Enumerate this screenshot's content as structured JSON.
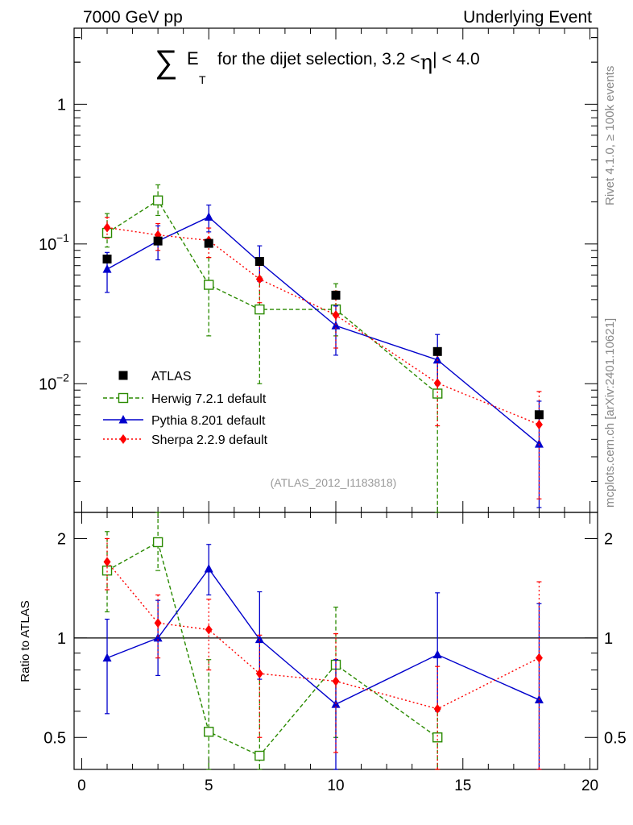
{
  "header": {
    "left": "7000 GeV pp",
    "right": "Underlying Event"
  },
  "title": {
    "sigma": "∑",
    "et_letter": "E",
    "et_sub": "T",
    "text": "for the dijet selection, 3.2 <",
    "eta": "η",
    "text_tail": "| < 4.0"
  },
  "side_labels": {
    "rivet": "Rivet 4.1.0, ≥ 100k events",
    "mcplots": "mcplots.cern.ch [arXiv:2401.10621]"
  },
  "analysis_id": "(ATLAS_2012_I1183818)",
  "colors": {
    "atlas": "#000000",
    "herwig": "#2a8a00",
    "pythia": "#0000cc",
    "sherpa": "#ff0000"
  },
  "chart_data": {
    "type": "line",
    "x_range": [
      -0.3,
      20.3
    ],
    "x_ticks": [
      0,
      5,
      10,
      15,
      20
    ],
    "main": {
      "yscale": "log",
      "ylim": [
        0.0012,
        3.5
      ],
      "y_tick_labels": [
        {
          "value": 1,
          "base": "1",
          "exp": ""
        },
        {
          "value": 0.1,
          "base": "10",
          "exp": "−1"
        },
        {
          "value": 0.01,
          "base": "10",
          "exp": "−2"
        }
      ],
      "series": [
        {
          "name": "ATLAS",
          "label": "ATLAS",
          "style": "data",
          "x": [
            1,
            3,
            5,
            7,
            10,
            14,
            18
          ],
          "y": [
            0.078,
            0.105,
            0.101,
            0.075,
            0.043,
            0.017,
            0.006
          ],
          "err_lo": [
            0.078,
            0.105,
            0.101,
            0.075,
            0.043,
            0.017,
            0.006
          ],
          "err_hi": [
            0.078,
            0.105,
            0.101,
            0.075,
            0.043,
            0.017,
            0.006
          ]
        },
        {
          "name": "Herwig",
          "label": "Herwig 7.2.1 default",
          "style": "herwig",
          "x": [
            1,
            3,
            5,
            7,
            10,
            14,
            18
          ],
          "y": [
            0.12,
            0.205,
            0.051,
            0.034,
            0.034,
            0.0085,
            null
          ],
          "err_lo": [
            0.095,
            0.16,
            0.022,
            0.01,
            0.022,
            0.001,
            null
          ],
          "err_hi": [
            0.165,
            0.265,
            0.08,
            0.058,
            0.052,
            0.015,
            null
          ]
        },
        {
          "name": "Pythia",
          "label": "Pythia 8.201 default",
          "style": "pythia",
          "x": [
            1,
            3,
            5,
            7,
            10,
            14,
            18
          ],
          "y": [
            0.066,
            0.105,
            0.156,
            0.074,
            0.026,
            0.0148,
            0.0037
          ],
          "err_lo": [
            0.045,
            0.077,
            0.122,
            0.054,
            0.016,
            0.0098,
            0.0013
          ],
          "err_hi": [
            0.087,
            0.135,
            0.19,
            0.097,
            0.036,
            0.0225,
            0.0075
          ]
        },
        {
          "name": "Sherpa",
          "label": "Sherpa 2.2.9 default",
          "style": "sherpa",
          "x": [
            1,
            3,
            5,
            7,
            10,
            14,
            18
          ],
          "y": [
            0.131,
            0.116,
            0.106,
            0.056,
            0.031,
            0.0101,
            0.0051
          ],
          "err_lo": [
            0.11,
            0.09,
            0.08,
            0.038,
            0.018,
            0.005,
            0.0015
          ],
          "err_hi": [
            0.155,
            0.14,
            0.13,
            0.075,
            0.046,
            0.016,
            0.0088
          ]
        }
      ]
    },
    "ratio": {
      "ylabel": "Ratio to ATLAS",
      "yscale": "log",
      "ylim": [
        0.4,
        2.4
      ],
      "y_tick_labels": [
        {
          "value": 2,
          "text": "2"
        },
        {
          "value": 1,
          "text": "1"
        },
        {
          "value": 0.5,
          "text": "0.5"
        }
      ],
      "reference_line": 1,
      "series": [
        {
          "name": "Herwig",
          "style": "herwig",
          "x": [
            1,
            3,
            5,
            7,
            10,
            14
          ],
          "y": [
            1.6,
            1.95,
            0.52,
            0.44,
            0.83,
            0.5
          ],
          "err_lo": [
            1.2,
            1.6,
            0.25,
            0.25,
            0.5,
            0.4
          ],
          "err_hi": [
            2.1,
            2.4,
            0.86,
            0.78,
            1.24,
            0.6
          ]
        },
        {
          "name": "Pythia",
          "style": "pythia",
          "x": [
            1,
            3,
            5,
            7,
            10,
            14,
            18
          ],
          "y": [
            0.87,
            1.0,
            1.62,
            0.99,
            0.63,
            0.89,
            0.65
          ],
          "err_lo": [
            0.59,
            0.77,
            1.35,
            0.75,
            0.4,
            0.6,
            0.3
          ],
          "err_hi": [
            1.14,
            1.3,
            1.92,
            1.38,
            0.86,
            1.37,
            1.27
          ]
        },
        {
          "name": "Sherpa",
          "style": "sherpa",
          "x": [
            1,
            3,
            5,
            7,
            10,
            14,
            18
          ],
          "y": [
            1.7,
            1.11,
            1.06,
            0.78,
            0.74,
            0.61,
            0.87
          ],
          "err_lo": [
            1.4,
            0.87,
            0.8,
            0.5,
            0.45,
            0.4,
            0.3
          ],
          "err_hi": [
            2.0,
            1.35,
            1.31,
            1.02,
            1.03,
            0.82,
            1.48
          ]
        }
      ]
    }
  }
}
